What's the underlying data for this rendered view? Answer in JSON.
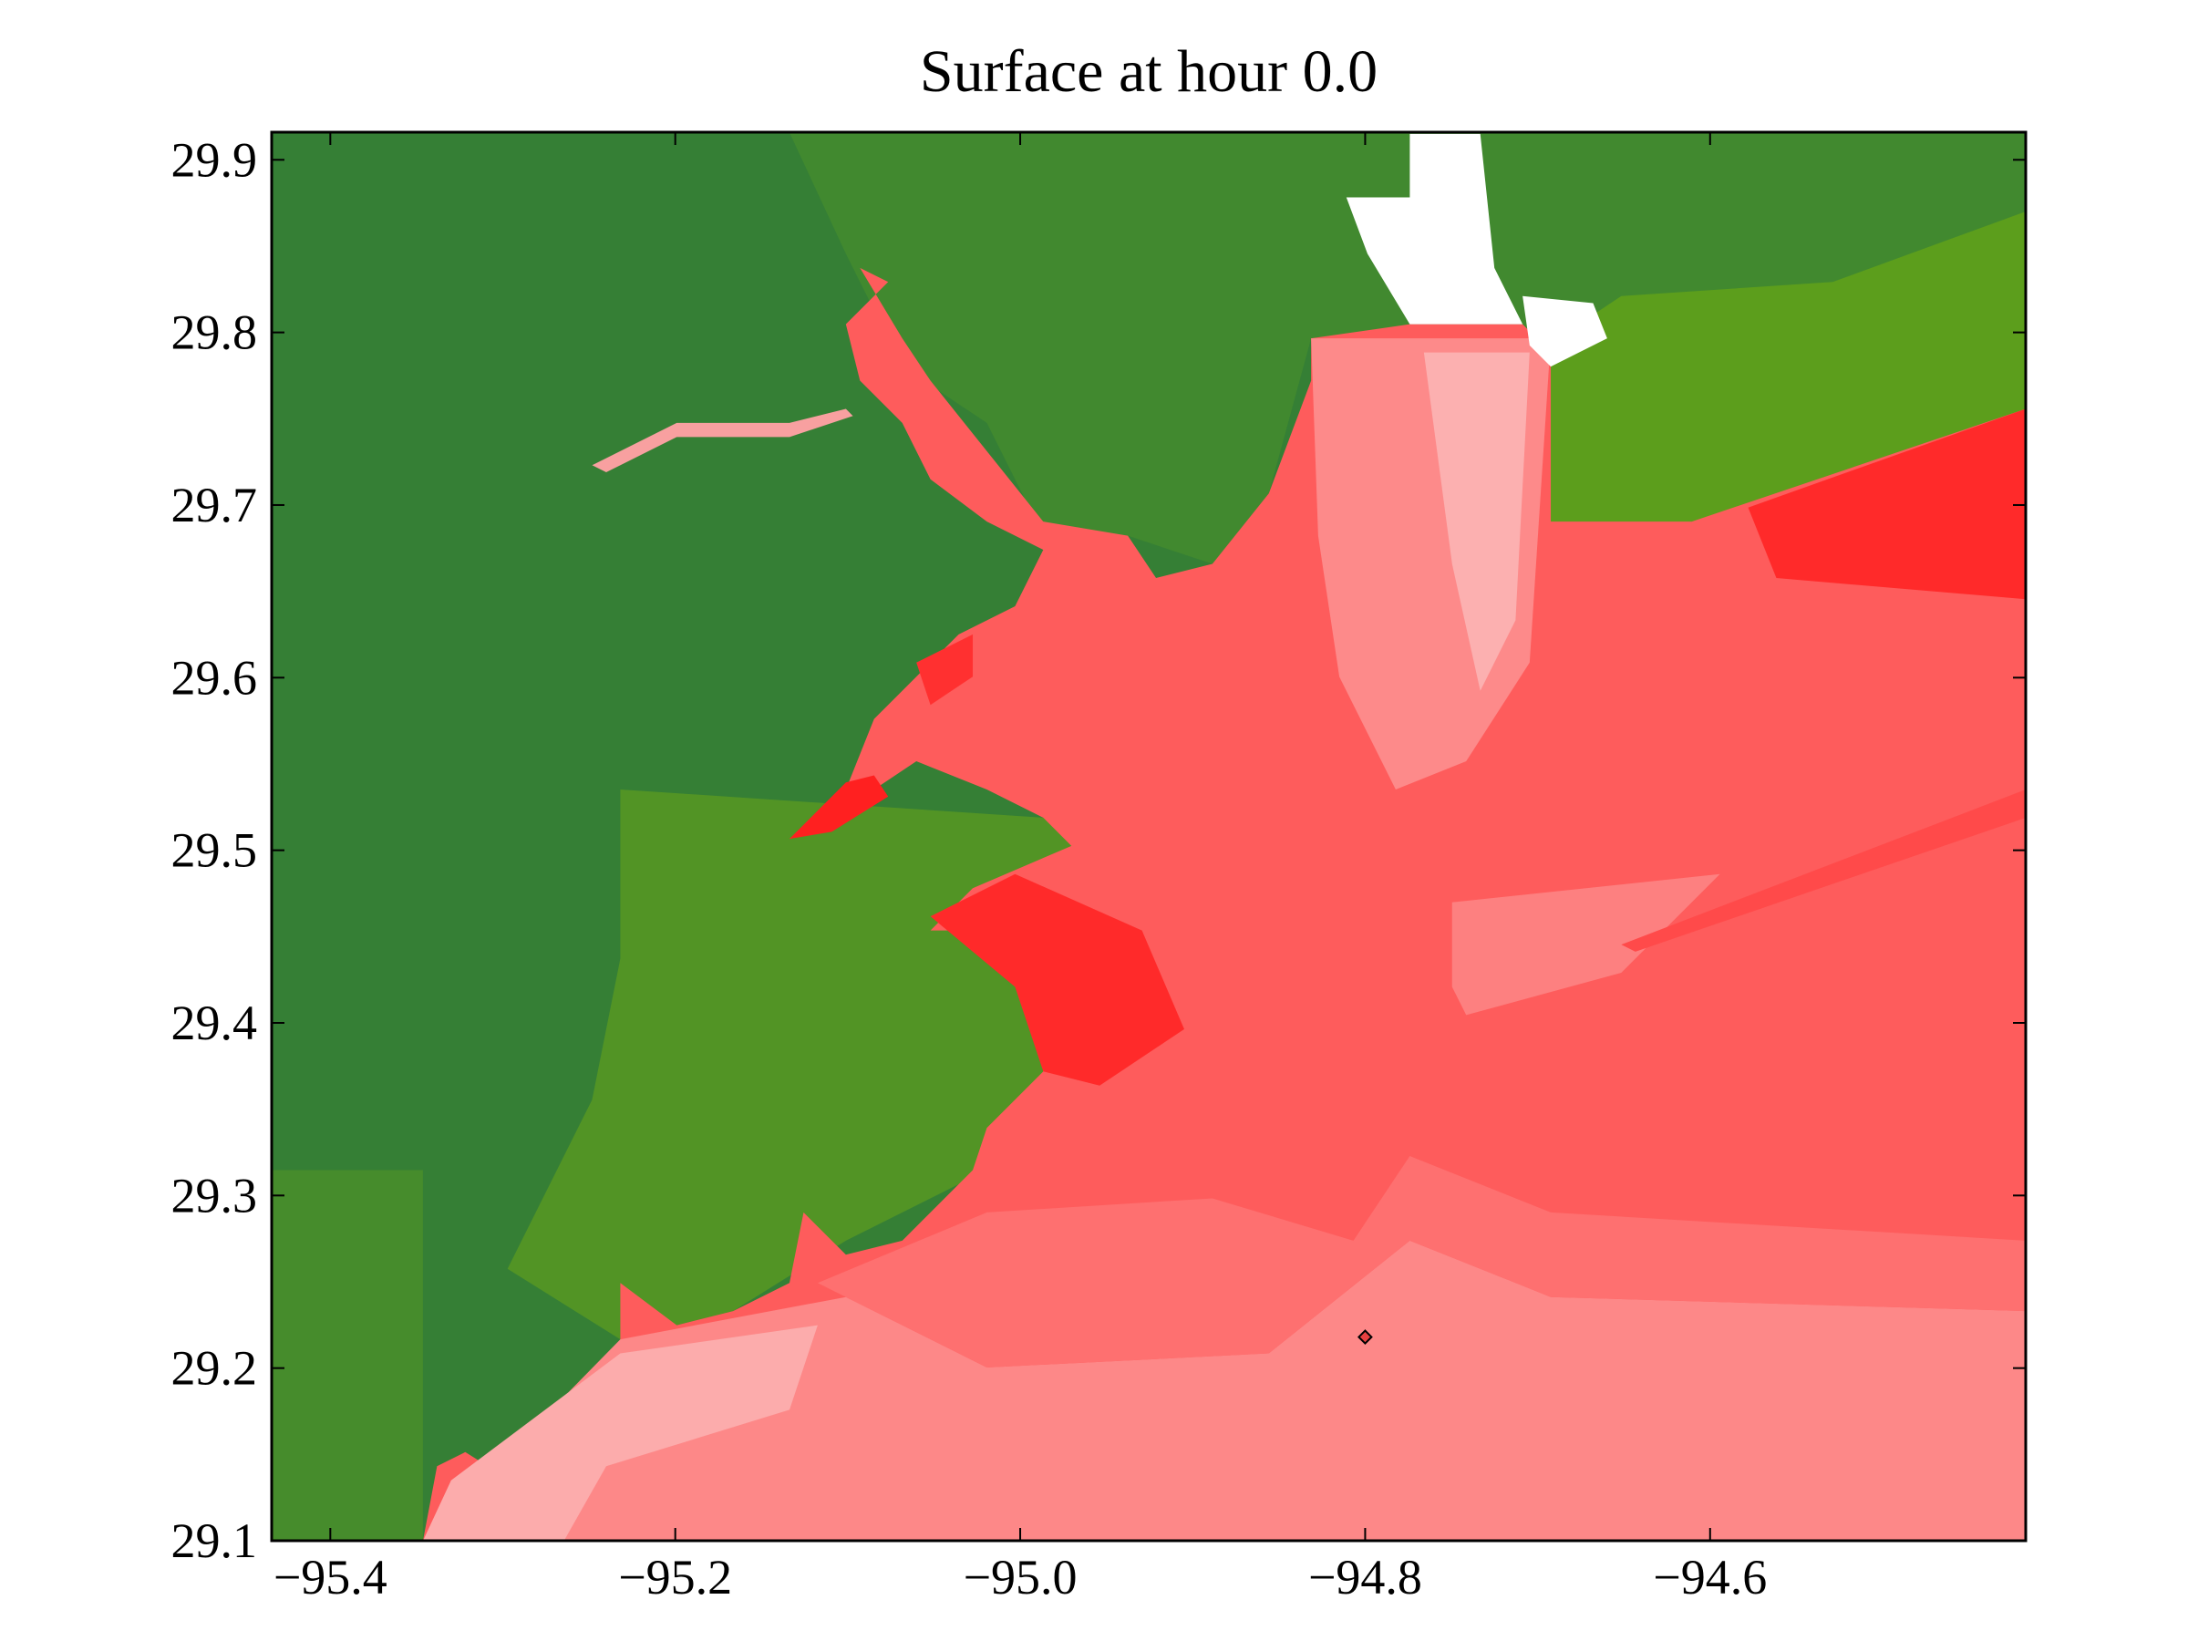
{
  "chart_data": {
    "type": "scatter",
    "title": "Surface at hour 0.0",
    "x": [
      -94.8
    ],
    "values": [
      29.218
    ],
    "color": "#e84040",
    "xlim": [
      -95.434,
      -94.417
    ],
    "ylim": [
      29.1,
      29.916
    ],
    "xticks": [
      {
        "value": -95.4,
        "label": "−95.4"
      },
      {
        "value": -95.2,
        "label": "−95.2"
      },
      {
        "value": -95.0,
        "label": "−95.0"
      },
      {
        "value": -94.8,
        "label": "−94.8"
      },
      {
        "value": -94.6,
        "label": "−94.6"
      }
    ],
    "yticks": [
      29.1,
      29.2,
      29.3,
      29.4,
      29.5,
      29.6,
      29.7,
      29.8,
      29.9
    ]
  }
}
